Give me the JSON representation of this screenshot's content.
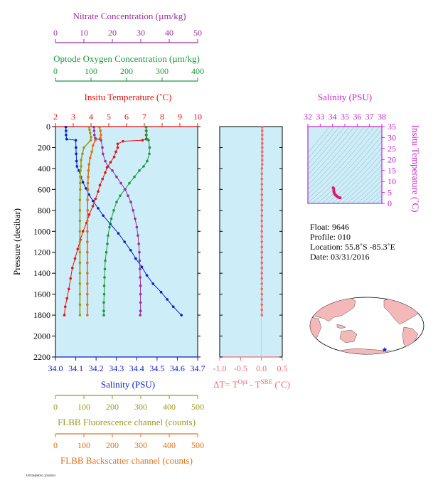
{
  "float_info": {
    "float_line": "Float:  9646",
    "profile_line": "Profile:  010",
    "location_line": "Location:  55.8˚S  -85.3˚E",
    "date_line": "Date:  03/31/2016"
  },
  "footer_note": "ANC96460010_20160331",
  "colors": {
    "nitrate": "#9a2ea0",
    "oxygen": "#1a9a3a",
    "temperature": "#e81010",
    "salinity": "#0a1ec8",
    "fluorescence": "#9a9a22",
    "backscatter": "#e0701a",
    "delta_t": "#f06a70",
    "ts_axis": "#cc22cc",
    "plot_bg": "#cdeef8",
    "axis_black": "#000000"
  },
  "chart_data": [
    {
      "type": "line",
      "title": "",
      "ylabel": "Pressure (decibar)",
      "ylim": [
        2200,
        0
      ],
      "y_ticks": [
        0,
        200,
        400,
        600,
        800,
        1000,
        1200,
        1400,
        1600,
        1800,
        2000,
        2200
      ],
      "axes": [
        {
          "key": "nitrate",
          "label": "Nitrate Concentration (µm/kg)",
          "range": [
            0,
            50
          ],
          "ticks": [
            0,
            10,
            20,
            30,
            40,
            50
          ],
          "position": "top-1"
        },
        {
          "key": "oxygen",
          "label": "Optode Oxygen Concentration (µm/kg)",
          "range": [
            0,
            400
          ],
          "ticks": [
            0,
            100,
            200,
            300,
            400
          ],
          "position": "top-2"
        },
        {
          "key": "temperature",
          "label": "Insitu Temperature (˚C)",
          "range": [
            2,
            10
          ],
          "ticks": [
            2,
            3,
            4,
            5,
            6,
            7,
            8,
            9,
            10
          ],
          "position": "top-3"
        },
        {
          "key": "salinity",
          "label": "Salinity (PSU)",
          "range": [
            34.0,
            34.7
          ],
          "ticks": [
            "34.0",
            "34.1",
            "34.2",
            "34.3",
            "34.4",
            "34.5",
            "34.6",
            "34.7"
          ],
          "position": "bottom-1"
        },
        {
          "key": "fluorescence",
          "label": "FLBB Fluorescence channel (counts)",
          "range": [
            0,
            500
          ],
          "ticks": [
            0,
            100,
            200,
            300,
            400,
            500
          ],
          "position": "bottom-2"
        },
        {
          "key": "backscatter",
          "label": "FLBB Backscatter channel (counts)",
          "range": [
            0,
            500
          ],
          "ticks": [
            0,
            100,
            200,
            300,
            400,
            500
          ],
          "position": "bottom-3"
        }
      ],
      "series": [
        {
          "key": "salinity",
          "axis": "salinity",
          "points": [
            [
              34.051,
              5
            ],
            [
              34.052,
              40
            ],
            [
              34.052,
              80
            ],
            [
              34.055,
              120
            ],
            [
              34.1,
              130
            ],
            [
              34.101,
              200
            ],
            [
              34.102,
              260
            ],
            [
              34.104,
              330
            ],
            [
              34.106,
              380
            ],
            [
              34.115,
              420
            ],
            [
              34.125,
              480
            ],
            [
              34.135,
              530
            ],
            [
              34.15,
              590
            ],
            [
              34.165,
              650
            ],
            [
              34.185,
              710
            ],
            [
              34.21,
              780
            ],
            [
              34.235,
              850
            ],
            [
              34.27,
              930
            ],
            [
              34.31,
              1020
            ],
            [
              34.34,
              1100
            ],
            [
              34.37,
              1180
            ],
            [
              34.395,
              1260
            ],
            [
              34.425,
              1340
            ],
            [
              34.45,
              1420
            ],
            [
              34.48,
              1500
            ],
            [
              34.52,
              1580
            ],
            [
              34.55,
              1650
            ],
            [
              34.58,
              1720
            ],
            [
              34.62,
              1800
            ]
          ]
        },
        {
          "key": "temperature",
          "axis": "temperature",
          "points": [
            [
              7.1,
              5
            ],
            [
              7.1,
              40
            ],
            [
              7.1,
              80
            ],
            [
              7.1,
              120
            ],
            [
              6.9,
              130
            ],
            [
              5.8,
              140
            ],
            [
              5.5,
              165
            ],
            [
              5.5,
              200
            ],
            [
              5.4,
              240
            ],
            [
              5.3,
              290
            ],
            [
              5.1,
              340
            ],
            [
              4.9,
              390
            ],
            [
              4.8,
              440
            ],
            [
              4.65,
              500
            ],
            [
              4.5,
              560
            ],
            [
              4.4,
              620
            ],
            [
              4.25,
              690
            ],
            [
              4.1,
              760
            ],
            [
              3.9,
              840
            ],
            [
              3.75,
              920
            ],
            [
              3.55,
              1000
            ],
            [
              3.4,
              1080
            ],
            [
              3.25,
              1170
            ],
            [
              3.1,
              1260
            ],
            [
              2.95,
              1350
            ],
            [
              2.85,
              1450
            ],
            [
              2.75,
              1550
            ],
            [
              2.65,
              1640
            ],
            [
              2.55,
              1720
            ],
            [
              2.5,
              1800
            ]
          ]
        },
        {
          "key": "oxygen",
          "axis": "oxygen",
          "points": [
            [
              255,
              5
            ],
            [
              256,
              40
            ],
            [
              256,
              80
            ],
            [
              258,
              120
            ],
            [
              262,
              130
            ],
            [
              265,
              200
            ],
            [
              264,
              260
            ],
            [
              258,
              330
            ],
            [
              248,
              380
            ],
            [
              236,
              420
            ],
            [
              222,
              480
            ],
            [
              208,
              540
            ],
            [
              195,
              600
            ],
            [
              182,
              660
            ],
            [
              172,
              720
            ],
            [
              164,
              800
            ],
            [
              157,
              880
            ],
            [
              152,
              960
            ],
            [
              148,
              1040
            ],
            [
              146,
              1120
            ],
            [
              143,
              1200
            ],
            [
              140,
              1280
            ],
            [
              139,
              1360
            ],
            [
              138,
              1440
            ],
            [
              137,
              1520
            ],
            [
              137,
              1600
            ],
            [
              136,
              1680
            ],
            [
              136,
              1760
            ],
            [
              136,
              1800
            ]
          ]
        },
        {
          "key": "nitrate",
          "axis": "nitrate",
          "points": [
            [
              13.5,
              5
            ],
            [
              13.6,
              40
            ],
            [
              13.7,
              80
            ],
            [
              14,
              110
            ],
            [
              16,
              130
            ],
            [
              16.5,
              200
            ],
            [
              16.7,
              260
            ],
            [
              17.5,
              330
            ],
            [
              18.5,
              380
            ],
            [
              20,
              420
            ],
            [
              21.5,
              480
            ],
            [
              23,
              540
            ],
            [
              24.5,
              600
            ],
            [
              25.5,
              660
            ],
            [
              26.5,
              720
            ],
            [
              27.3,
              800
            ],
            [
              28,
              880
            ],
            [
              28.6,
              960
            ],
            [
              29,
              1040
            ],
            [
              29.3,
              1120
            ],
            [
              29.5,
              1200
            ],
            [
              29.6,
              1280
            ],
            [
              29.7,
              1360
            ],
            [
              29.8,
              1440
            ],
            [
              29.9,
              1520
            ],
            [
              29.9,
              1600
            ],
            [
              29.9,
              1680
            ],
            [
              29.9,
              1760
            ],
            [
              29.8,
              1800
            ]
          ]
        },
        {
          "key": "fluorescence",
          "axis": "fluorescence",
          "points": [
            [
              118,
              5
            ],
            [
              120,
              30
            ],
            [
              122,
              60
            ],
            [
              125,
              100
            ],
            [
              124,
              130
            ],
            [
              100,
              200
            ],
            [
              95,
              260
            ],
            [
              90,
              320
            ],
            [
              90,
              380
            ],
            [
              88,
              420
            ],
            [
              87,
              480
            ],
            [
              87,
              540
            ],
            [
              87,
              600
            ],
            [
              86,
              700
            ],
            [
              86,
              800
            ],
            [
              86,
              900
            ],
            [
              86,
              1000
            ],
            [
              86,
              1100
            ],
            [
              86,
              1200
            ],
            [
              86,
              1300
            ],
            [
              86,
              1400
            ],
            [
              86,
              1500
            ],
            [
              86,
              1600
            ],
            [
              86,
              1700
            ],
            [
              86,
              1800
            ]
          ]
        },
        {
          "key": "backscatter",
          "axis": "backscatter",
          "points": [
            [
              155,
              5
            ],
            [
              158,
              40
            ],
            [
              160,
              80
            ],
            [
              158,
              110
            ],
            [
              140,
              130
            ],
            [
              132,
              180
            ],
            [
              128,
              240
            ],
            [
              122,
              300
            ],
            [
              118,
              360
            ],
            [
              116,
              420
            ],
            [
              115,
              480
            ],
            [
              114,
              540
            ],
            [
              114,
              600
            ],
            [
              113,
              700
            ],
            [
              113,
              800
            ],
            [
              112,
              900
            ],
            [
              112,
              1000
            ],
            [
              112,
              1100
            ],
            [
              112,
              1200
            ],
            [
              112,
              1300
            ],
            [
              112,
              1400
            ],
            [
              112,
              1500
            ],
            [
              112,
              1600
            ],
            [
              112,
              1700
            ],
            [
              112,
              1800
            ]
          ]
        }
      ]
    },
    {
      "type": "line",
      "title": "",
      "xlabel": "ΔT= T",
      "xlabel_sup1": "Opt",
      "xlabel_mid": " - T",
      "xlabel_sup2": "SBE",
      "xlabel_end": " (˚C)",
      "xlim": [
        -1.0,
        0.5
      ],
      "x_ticks": [
        "-1.0",
        "-0.5",
        "0.0",
        "0.5"
      ],
      "ylim": [
        2200,
        0
      ],
      "series": [
        {
          "key": "delta_t",
          "points": [
            [
              0.02,
              5
            ],
            [
              0.02,
              40
            ],
            [
              0.02,
              80
            ],
            [
              0.02,
              120
            ],
            [
              0.02,
              160
            ],
            [
              0.02,
              200
            ],
            [
              0.02,
              240
            ],
            [
              0.02,
              280
            ],
            [
              0.02,
              320
            ],
            [
              0.02,
              360
            ],
            [
              0.01,
              400
            ],
            [
              0.01,
              450
            ],
            [
              0.01,
              500
            ],
            [
              0.01,
              550
            ],
            [
              0.01,
              600
            ],
            [
              0.01,
              650
            ],
            [
              0.01,
              700
            ],
            [
              0.01,
              750
            ],
            [
              0.01,
              800
            ],
            [
              0.01,
              850
            ],
            [
              0.01,
              900
            ],
            [
              0.01,
              950
            ],
            [
              0.01,
              1000
            ],
            [
              0.01,
              1050
            ],
            [
              0.01,
              1100
            ],
            [
              0.01,
              1150
            ],
            [
              0.01,
              1200
            ],
            [
              0.01,
              1250
            ],
            [
              0.01,
              1300
            ],
            [
              0.01,
              1350
            ],
            [
              0.01,
              1400
            ],
            [
              0.01,
              1450
            ],
            [
              0.01,
              1500
            ],
            [
              0.01,
              1550
            ],
            [
              0.01,
              1600
            ],
            [
              0.01,
              1650
            ],
            [
              0.01,
              1700
            ],
            [
              0.01,
              1750
            ],
            [
              0.01,
              1800
            ]
          ]
        }
      ]
    },
    {
      "type": "scatter",
      "title": "",
      "xlabel": "Salinity (PSU)",
      "ylabel": "Insitu Temperature (˚C)",
      "xlim": [
        32,
        38
      ],
      "ylim": [
        0,
        35
      ],
      "x_ticks": [
        32,
        33,
        34,
        35,
        36,
        37,
        38
      ],
      "y_ticks": [
        0,
        5,
        10,
        15,
        20,
        25,
        30,
        35
      ],
      "points": [
        [
          34.05,
          7.1
        ],
        [
          34.06,
          7.0
        ],
        [
          34.1,
          6.5
        ],
        [
          34.1,
          5.5
        ],
        [
          34.12,
          5.0
        ],
        [
          34.15,
          4.6
        ],
        [
          34.2,
          4.1
        ],
        [
          34.27,
          3.7
        ],
        [
          34.35,
          3.3
        ],
        [
          34.45,
          2.9
        ],
        [
          34.55,
          2.6
        ],
        [
          34.62,
          2.5
        ]
      ]
    },
    {
      "type": "map",
      "title": "",
      "marker": {
        "lat": -55.8,
        "lon": -85.3,
        "symbol": "star"
      }
    }
  ]
}
